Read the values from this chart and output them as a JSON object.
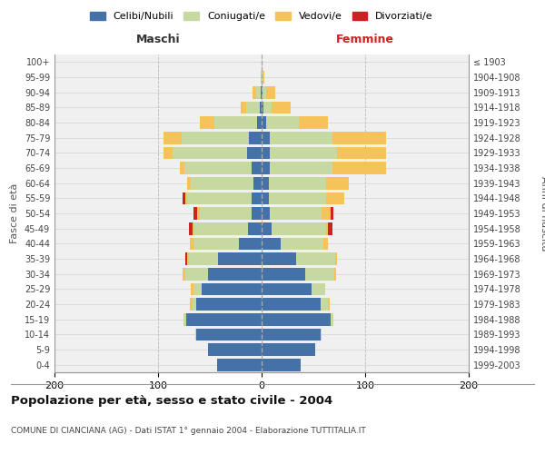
{
  "age_groups": [
    "0-4",
    "5-9",
    "10-14",
    "15-19",
    "20-24",
    "25-29",
    "30-34",
    "35-39",
    "40-44",
    "45-49",
    "50-54",
    "55-59",
    "60-64",
    "65-69",
    "70-74",
    "75-79",
    "80-84",
    "85-89",
    "90-94",
    "95-99",
    "100+"
  ],
  "birth_years": [
    "1999-2003",
    "1994-1998",
    "1989-1993",
    "1984-1988",
    "1979-1983",
    "1974-1978",
    "1969-1973",
    "1964-1968",
    "1959-1963",
    "1954-1958",
    "1949-1953",
    "1944-1948",
    "1939-1943",
    "1934-1938",
    "1929-1933",
    "1924-1928",
    "1919-1923",
    "1914-1918",
    "1909-1913",
    "1904-1908",
    "≤ 1903"
  ],
  "maschi_celibi": [
    43,
    52,
    63,
    73,
    63,
    58,
    52,
    42,
    22,
    13,
    10,
    10,
    8,
    10,
    14,
    12,
    4,
    2,
    1,
    0,
    0
  ],
  "maschi_coniugati": [
    0,
    0,
    1,
    2,
    4,
    8,
    22,
    28,
    43,
    52,
    50,
    62,
    60,
    65,
    72,
    65,
    42,
    13,
    4,
    1,
    0
  ],
  "maschi_vedovi": [
    0,
    0,
    0,
    0,
    2,
    2,
    2,
    2,
    4,
    2,
    2,
    2,
    4,
    4,
    9,
    18,
    14,
    5,
    4,
    0,
    0
  ],
  "maschi_divorziati": [
    0,
    0,
    0,
    0,
    0,
    0,
    0,
    2,
    0,
    3,
    4,
    2,
    0,
    0,
    0,
    0,
    0,
    0,
    0,
    0,
    0
  ],
  "femmine_nubili": [
    38,
    52,
    57,
    67,
    57,
    48,
    42,
    33,
    18,
    10,
    8,
    7,
    7,
    8,
    8,
    8,
    4,
    2,
    1,
    0,
    0
  ],
  "femmine_coniugate": [
    0,
    0,
    1,
    2,
    7,
    13,
    28,
    38,
    42,
    52,
    50,
    55,
    55,
    60,
    65,
    60,
    32,
    8,
    3,
    1,
    0
  ],
  "femmine_vedove": [
    0,
    0,
    0,
    0,
    2,
    0,
    2,
    2,
    4,
    2,
    9,
    18,
    22,
    52,
    47,
    52,
    28,
    18,
    9,
    2,
    0
  ],
  "femmine_divorziate": [
    0,
    0,
    0,
    0,
    0,
    0,
    0,
    0,
    0,
    4,
    2,
    0,
    0,
    0,
    0,
    0,
    0,
    0,
    0,
    0,
    0
  ],
  "colors": {
    "celibi": "#4472a8",
    "coniugati": "#c5d9a0",
    "vedovi": "#f5c35a",
    "divorziati": "#cc2222"
  },
  "xlim": 200,
  "title": "Popolazione per età, sesso e stato civile - 2004",
  "subtitle": "COMUNE DI CIANCIANA (AG) - Dati ISTAT 1° gennaio 2004 - Elaborazione TUTTITALIA.IT",
  "ylabel": "Fasce di età",
  "legend_labels": [
    "Celibi/Nubili",
    "Coniugati/e",
    "Vedovi/e",
    "Divorziati/e"
  ],
  "maschi_label": "Maschi",
  "femmine_label": "Femmine"
}
